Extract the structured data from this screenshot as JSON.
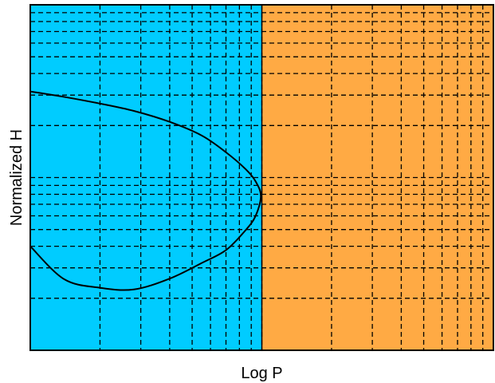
{
  "chart_data": {
    "type": "line",
    "title": "",
    "xlabel": "Log P",
    "ylabel": "Normalized H",
    "xscale": "log",
    "yscale": "log",
    "xlim": [
      1,
      100
    ],
    "ylim": [
      1,
      100
    ],
    "x_ticks": [
      1,
      2,
      3,
      4,
      5,
      6,
      7,
      8,
      9,
      10,
      20,
      30,
      40,
      50,
      60,
      70,
      80,
      90,
      100
    ],
    "y_ticks": [
      1,
      2,
      3,
      4,
      5,
      6,
      7,
      8,
      9,
      10,
      20,
      30,
      40,
      50,
      60,
      70,
      80,
      90,
      100
    ],
    "grid": true,
    "grid_style": "dashed",
    "tick_labels_visible": false,
    "regions": [
      {
        "x_range": [
          1,
          10
        ],
        "color": "#00ccff"
      },
      {
        "x_range": [
          10,
          100
        ],
        "color": "#ffaa44"
      }
    ],
    "series": [
      {
        "color": "#000000",
        "x": [
          1.0,
          1.4,
          2.0,
          2.8,
          4.0,
          5.5,
          7.0,
          8.5,
          9.4,
          9.9,
          9.4,
          8.5,
          7.0,
          5.5,
          4.0,
          2.8,
          2.0,
          1.4,
          1.0
        ],
        "y": [
          4.0,
          2.58,
          2.3,
          2.25,
          2.6,
          3.2,
          3.8,
          4.95,
          6.0,
          7.8,
          9.5,
          11.2,
          14.0,
          17.5,
          21.0,
          24.3,
          26.8,
          29.3,
          31.5
        ]
      }
    ]
  }
}
